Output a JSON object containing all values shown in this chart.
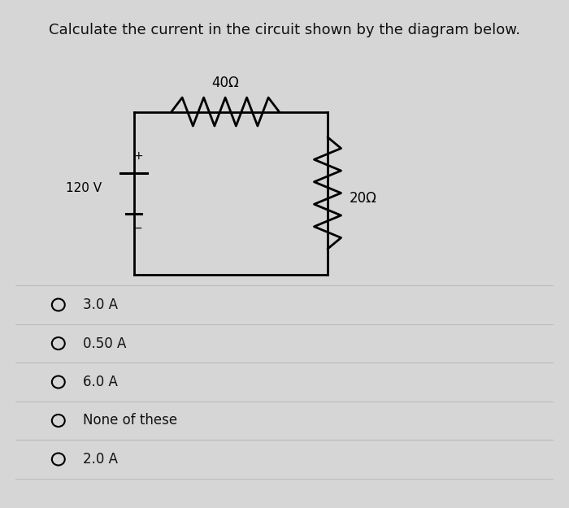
{
  "title": "Calculate the current in the circuit shown by the diagram below.",
  "title_fontsize": 13,
  "background_color": "#d6d6d6",
  "choices": [
    "3.0 A",
    "0.50 A",
    "6.0 A",
    "None of these",
    "2.0 A"
  ],
  "resistor_top_label": "40Ω",
  "resistor_right_label": "20Ω",
  "battery_label": "120 V",
  "battery_plus": "+",
  "battery_minus": "−",
  "line_color": "#000000",
  "line_width": 2.0,
  "choice_circle_color": "#000000",
  "choice_fontsize": 12,
  "divider_color": "#bbbbbb",
  "circuit_L": 0.22,
  "circuit_R": 0.58,
  "circuit_T": 0.78,
  "circuit_B": 0.46
}
